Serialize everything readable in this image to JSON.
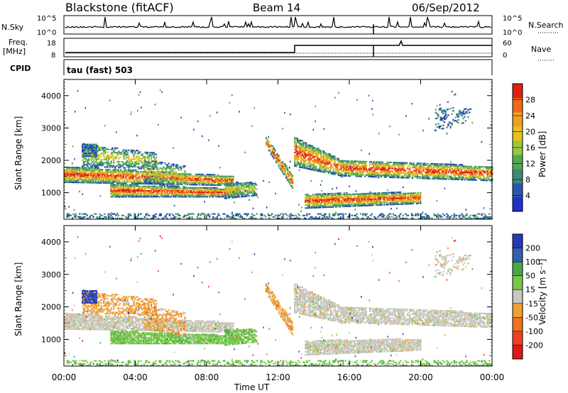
{
  "header": {
    "station": "Blackstone (fitACF)",
    "beam": "Beam 14",
    "date": "06/Sep/2012"
  },
  "colors": {
    "power_scale": [
      "#2030c8",
      "#2858a8",
      "#3c8a78",
      "#56a850",
      "#98c83c",
      "#e8c020",
      "#f0a020",
      "#f06818",
      "#e02010"
    ],
    "velocity_scale": [
      "#e01818",
      "#f04020",
      "#f07020",
      "#f0a030",
      "#c8c8c0",
      "#78c848",
      "#48a848",
      "#3060b0",
      "#2838b8"
    ]
  },
  "chart_data": [
    {
      "type": "line",
      "name": "noise-panel",
      "left_label": "N.Sky",
      "right_label": "N.Search",
      "left_ticks": [
        "10^5",
        "10^0"
      ],
      "right_ticks": [
        "10^5",
        "10^0"
      ],
      "xlim": [
        "00:00",
        "24:00"
      ]
    },
    {
      "type": "line",
      "name": "frequency-panel",
      "left_label": "Freq.",
      "left_unit": "[MHz]",
      "right_label": "Nave",
      "left_ticks": [
        8,
        18
      ],
      "right_ticks": [
        0,
        60
      ],
      "xlim": [
        "00:00",
        "24:00"
      ]
    },
    {
      "type": "text",
      "name": "cpid-panel",
      "label": "CPID",
      "program": "tau (fast) 503"
    },
    {
      "type": "heatmap",
      "name": "power-panel",
      "ylabel": "Slant Range [km]",
      "yticks": [
        1000,
        2000,
        3000,
        4000
      ],
      "ylim": [
        180,
        4500
      ],
      "xlim": [
        "00:00",
        "24:00"
      ],
      "colorbar": {
        "label": "Power [dB]",
        "ticks": [
          4,
          8,
          12,
          16,
          20,
          24,
          28
        ],
        "range": [
          0,
          32
        ]
      }
    },
    {
      "type": "heatmap",
      "name": "velocity-panel",
      "ylabel": "Slant Range [km]",
      "yticks": [
        1000,
        2000,
        3000,
        4000
      ],
      "ylim": [
        180,
        4500
      ],
      "xlim": [
        "00:00",
        "24:00"
      ],
      "colorbar": {
        "label": "Velocity [m s⁻¹]",
        "ticks": [
          -200,
          -100,
          -50,
          -15,
          15,
          50,
          100,
          200
        ]
      }
    }
  ],
  "xaxis": {
    "ticks": [
      "00:00",
      "04:00",
      "08:00",
      "12:00",
      "16:00",
      "20:00",
      "00:00"
    ],
    "label": "Time UT"
  }
}
